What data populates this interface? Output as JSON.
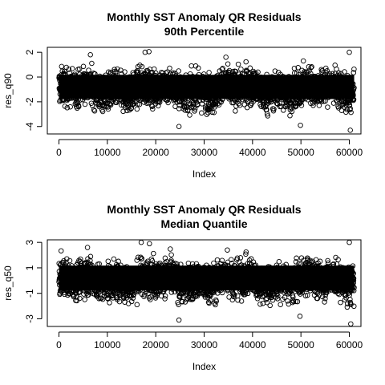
{
  "chart_data": [
    {
      "type": "scatter",
      "title_line1": "Monthly SST Anomaly QR Residuals",
      "title_line2": "90th Percentile",
      "xlabel": "Index",
      "ylabel": "res_q90",
      "xlim": [
        -2400,
        62400
      ],
      "ylim": [
        -4.6,
        2.4
      ],
      "xticks": [
        0,
        10000,
        20000,
        30000,
        40000,
        50000,
        60000
      ],
      "xtick_labels": [
        "0",
        "10000",
        "20000",
        "30000",
        "40000",
        "50000",
        "60000"
      ],
      "yticks": [
        2,
        0,
        -2,
        -4
      ],
      "ytick_labels": [
        "2",
        "0",
        "-2",
        "-4"
      ],
      "n_points": 61000,
      "marker": "open-circle",
      "series_summary": {
        "center": -1.0,
        "core_low": -2.2,
        "core_high": 0.6,
        "min_observed": -4.3,
        "max_observed": 2.0
      },
      "outliers": [
        {
          "x": 17800,
          "y": 2.0
        },
        {
          "x": 18600,
          "y": 2.05
        },
        {
          "x": 60000,
          "y": 2.0
        },
        {
          "x": 60200,
          "y": -4.3
        },
        {
          "x": 24800,
          "y": -4.0
        },
        {
          "x": 49900,
          "y": -3.9
        },
        {
          "x": 6500,
          "y": 1.8
        },
        {
          "x": 34500,
          "y": 1.6
        }
      ]
    },
    {
      "type": "scatter",
      "title_line1": "Monthly SST Anomaly QR Residuals",
      "title_line2": "Median Quantile",
      "xlabel": "Index",
      "ylabel": "res_q50",
      "xlim": [
        -2400,
        62400
      ],
      "ylim": [
        -3.6,
        3.2
      ],
      "xticks": [
        0,
        10000,
        20000,
        30000,
        40000,
        50000,
        60000
      ],
      "xtick_labels": [
        "0",
        "10000",
        "20000",
        "30000",
        "40000",
        "50000",
        "60000"
      ],
      "yticks": [
        3,
        1,
        -1,
        -3
      ],
      "ytick_labels": [
        "3",
        "1",
        "-1",
        "-3"
      ],
      "n_points": 61000,
      "marker": "open-circle",
      "series_summary": {
        "center": 0.0,
        "core_low": -1.2,
        "core_high": 1.6,
        "min_observed": -3.4,
        "max_observed": 3.0
      },
      "outliers": [
        {
          "x": 17000,
          "y": 3.0
        },
        {
          "x": 18700,
          "y": 2.9
        },
        {
          "x": 60000,
          "y": 3.0
        },
        {
          "x": 60300,
          "y": -3.4
        },
        {
          "x": 24800,
          "y": -3.1
        },
        {
          "x": 49800,
          "y": -2.8
        },
        {
          "x": 5900,
          "y": 2.6
        },
        {
          "x": 34800,
          "y": 2.4
        }
      ]
    }
  ]
}
